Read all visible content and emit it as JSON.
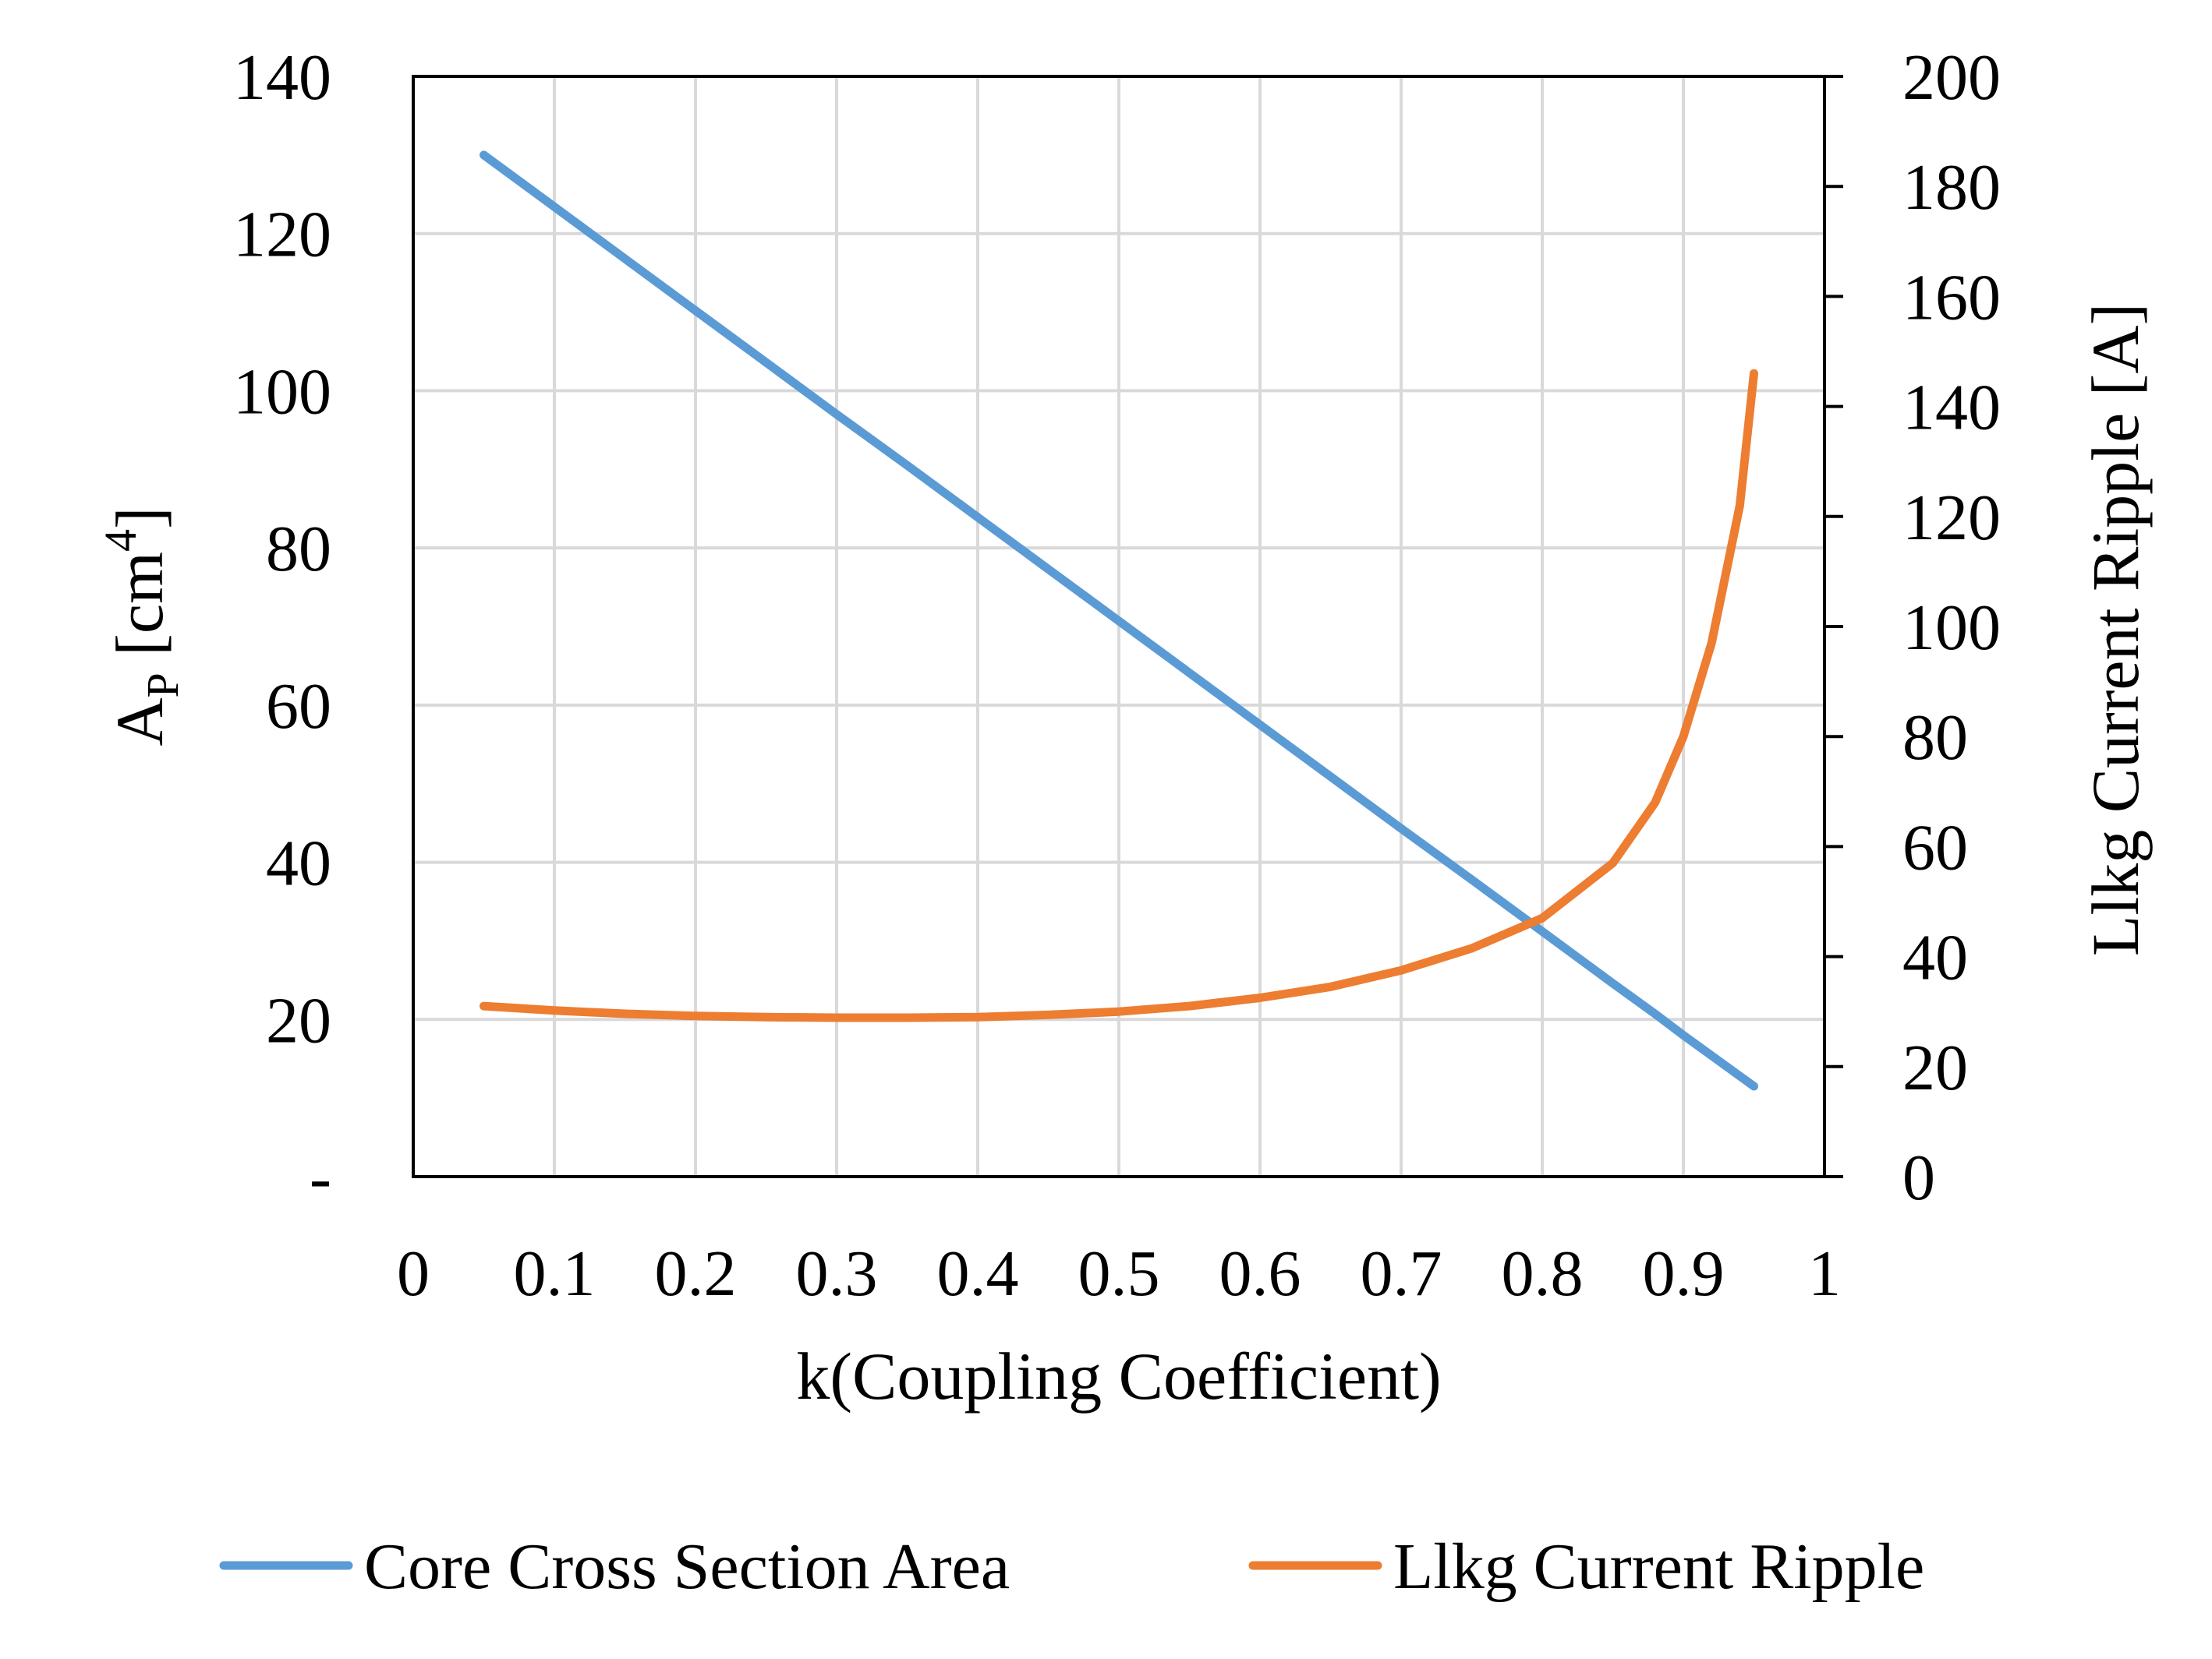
{
  "chart_data": {
    "type": "line",
    "x": [
      0.05,
      0.1,
      0.15,
      0.2,
      0.25,
      0.3,
      0.35,
      0.4,
      0.45,
      0.5,
      0.55,
      0.6,
      0.65,
      0.7,
      0.75,
      0.8,
      0.85,
      0.88,
      0.9,
      0.92,
      0.94,
      0.95
    ],
    "series": [
      {
        "name": "Core Cross Section Area",
        "axis": "left",
        "color": "#5B9BD5",
        "values": [
          130,
          123.4,
          116.8,
          110.2,
          103.6,
          97,
          90.5,
          83.9,
          77.3,
          70.7,
          64.1,
          57.5,
          50.9,
          44.3,
          37.8,
          31.2,
          24.6,
          20.7,
          18,
          15.4,
          12.8,
          11.5
        ]
      },
      {
        "name": "Llkg Current Ripple",
        "axis": "right",
        "color": "#ED7D31",
        "values": [
          31,
          30.2,
          29.6,
          29.2,
          29,
          28.9,
          28.9,
          29,
          29.4,
          30,
          31,
          32.5,
          34.5,
          37.5,
          41.5,
          47,
          57,
          68,
          80,
          97,
          122,
          146
        ]
      }
    ],
    "xlabel": "k(Coupling Coefficient)",
    "ylabel": "A",
    "ylabel_sub": "P",
    "ylabel_tail": " [cm",
    "ylabel_sup": "4",
    "ylabel_end": "]",
    "y2label": "Llkg Current Ripple [A]",
    "xlim": [
      0,
      1
    ],
    "ylim": [
      0,
      140
    ],
    "y2lim": [
      0,
      200
    ],
    "x_ticks": [
      "0",
      "0.1",
      "0.2",
      "0.3",
      "0.4",
      "0.5",
      "0.6",
      "0.7",
      "0.8",
      "0.9",
      "1"
    ],
    "y_ticks": [
      "-",
      "20",
      "40",
      "60",
      "80",
      "100",
      "120",
      "140"
    ],
    "y2_ticks": [
      "0",
      "20",
      "40",
      "60",
      "80",
      "100",
      "120",
      "140",
      "160",
      "180",
      "200"
    ],
    "grid": true,
    "legend_position": "bottom"
  }
}
